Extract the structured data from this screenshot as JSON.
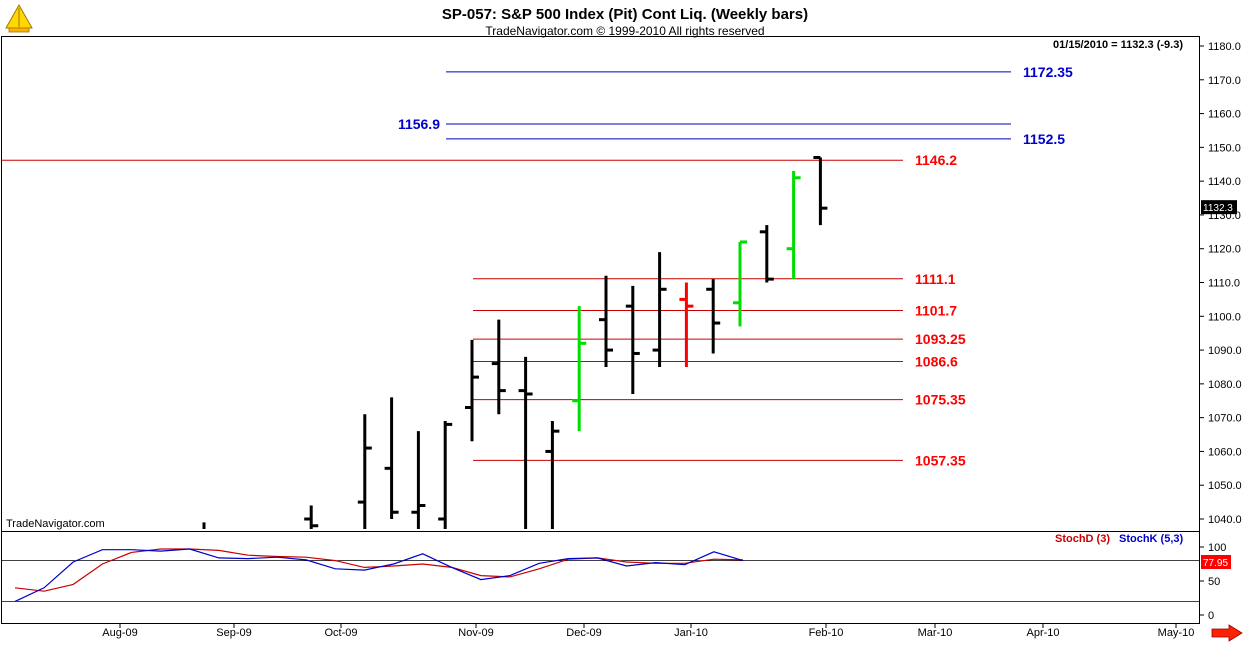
{
  "header": {
    "title": "SP-057:  S&P 500 Index (Pit) Cont Liq.  (Weekly bars)",
    "subtitle": "TradeNavigator.com © 1999-2010 All rights reserved",
    "quote": "01/15/2010 = 1132.3 (-9.3)",
    "watermark": "TradeNavigator.com"
  },
  "colors": {
    "up_bar": "#00dd00",
    "down_bar": "#ff0000",
    "bar": "#000000",
    "support_line": "#cc0000",
    "resistance_line": "#0000bb",
    "stoch_d": "#cc0000",
    "stoch_k": "#0000cc"
  },
  "chart_data": [
    {
      "type": "ohlc",
      "ylim": [
        1035,
        1183
      ],
      "yticks": [
        1040,
        1050,
        1060,
        1070,
        1080,
        1090,
        1100,
        1110,
        1120,
        1130,
        1140,
        1150,
        1160,
        1170,
        1180
      ],
      "ytick_labels": [
        "1040.0",
        "1050.0",
        "1060.0",
        "1070.0",
        "1080.0",
        "1090.0",
        "1100.0",
        "1110.0",
        "1120.0",
        "1130.0",
        "1140.0",
        "1150.0",
        "1160.0",
        "1170.0",
        "1180.0"
      ],
      "last_price_label": "1132.3",
      "x_months": [
        "Aug-09",
        "Sep-09",
        "Oct-09",
        "Nov-09",
        "Dec-09",
        "Jan-10",
        "Feb-10",
        "Mar-10",
        "Apr-10",
        "May-10"
      ],
      "bars": [
        {
          "week": "2009-07-31",
          "high": 1039,
          "low": 1030,
          "open": 1034,
          "close": 1036,
          "color": "black"
        },
        {
          "week": "2009-08-28",
          "high": 1044,
          "low": 1022,
          "open": 1040,
          "close": 1038,
          "color": "black"
        },
        {
          "week": "2009-09-11",
          "high": 1071,
          "low": 1025,
          "open": 1045,
          "close": 1061,
          "color": "black"
        },
        {
          "week": "2009-09-18",
          "high": 1076,
          "low": 1040,
          "open": 1055,
          "close": 1042,
          "color": "black"
        },
        {
          "week": "2009-09-25",
          "high": 1066,
          "low": 1030,
          "open": 1042,
          "close": 1044,
          "color": "black"
        },
        {
          "week": "2009-10-02",
          "high": 1069,
          "low": 1020,
          "open": 1040,
          "close": 1068,
          "color": "black"
        },
        {
          "week": "2009-10-09",
          "high": 1093,
          "low": 1063,
          "open": 1073,
          "close": 1082,
          "color": "black"
        },
        {
          "week": "2009-10-16",
          "high": 1099,
          "low": 1071,
          "open": 1086,
          "close": 1078,
          "color": "black"
        },
        {
          "week": "2009-10-23",
          "high": 1088,
          "low": 1035,
          "open": 1078,
          "close": 1077,
          "color": "black"
        },
        {
          "week": "2009-10-30",
          "high": 1069,
          "low": 1028,
          "open": 1060,
          "close": 1066,
          "color": "black"
        },
        {
          "week": "2009-11-06",
          "high": 1103,
          "low": 1066,
          "open": 1075,
          "close": 1092,
          "color": "green"
        },
        {
          "week": "2009-11-13",
          "high": 1112,
          "low": 1085,
          "open": 1099,
          "close": 1090,
          "color": "black"
        },
        {
          "week": "2009-11-20",
          "high": 1109,
          "low": 1077,
          "open": 1103,
          "close": 1089,
          "color": "black"
        },
        {
          "week": "2009-11-27",
          "high": 1119,
          "low": 1085,
          "open": 1090,
          "close": 1108,
          "color": "black"
        },
        {
          "week": "2009-12-04",
          "high": 1110,
          "low": 1085,
          "open": 1105,
          "close": 1103,
          "color": "red"
        },
        {
          "week": "2009-12-11",
          "high": 1111,
          "low": 1089,
          "open": 1108,
          "close": 1098,
          "color": "black"
        },
        {
          "week": "2009-12-18",
          "high": 1122,
          "low": 1097,
          "open": 1104,
          "close": 1122,
          "color": "green"
        },
        {
          "week": "2009-12-25",
          "high": 1127,
          "low": 1110,
          "open": 1125,
          "close": 1111,
          "color": "black"
        },
        {
          "week": "2010-01-01",
          "high": 1143,
          "low": 1111,
          "open": 1120,
          "close": 1141,
          "color": "green"
        },
        {
          "week": "2010-01-08",
          "high": 1147,
          "low": 1127,
          "open": 1147,
          "close": 1132,
          "color": "black"
        }
      ],
      "levels": [
        {
          "value": 1172.35,
          "label": "1172.35",
          "kind": "resistance"
        },
        {
          "value": 1156.9,
          "label": "1156.9",
          "kind": "resistance"
        },
        {
          "value": 1152.5,
          "label": "1152.5",
          "kind": "resistance"
        },
        {
          "value": 1146.2,
          "label": "1146.2",
          "kind": "support"
        },
        {
          "value": 1111.1,
          "label": "1111.1",
          "kind": "support"
        },
        {
          "value": 1101.7,
          "label": "1101.7",
          "kind": "support"
        },
        {
          "value": 1093.25,
          "label": "1093.25",
          "kind": "support"
        },
        {
          "value": 1086.6,
          "label": "1086.6",
          "kind": "support"
        },
        {
          "value": 1075.35,
          "label": "1075.35",
          "kind": "support"
        },
        {
          "value": 1057.35,
          "label": "1057.35",
          "kind": "support"
        }
      ]
    },
    {
      "type": "line",
      "ylim": [
        0,
        100
      ],
      "yticks": [
        0,
        50,
        100
      ],
      "ytick_labels": [
        "0",
        "50",
        "100"
      ],
      "reference_lines": [
        80,
        20
      ],
      "last_value_label": "77.95",
      "series": [
        {
          "name": "StochD (3)",
          "values": [
            40,
            35,
            45,
            75,
            92,
            97,
            97,
            95,
            88,
            86,
            85,
            80,
            70,
            72,
            75,
            70,
            58,
            56,
            68,
            82,
            84,
            78,
            76,
            76,
            82,
            81
          ]
        },
        {
          "name": "StochK (5,3)",
          "values": [
            20,
            40,
            78,
            96,
            96,
            94,
            97,
            84,
            83,
            85,
            81,
            68,
            66,
            75,
            90,
            70,
            52,
            58,
            76,
            83,
            84,
            72,
            77,
            74,
            93,
            80
          ]
        }
      ]
    }
  ]
}
